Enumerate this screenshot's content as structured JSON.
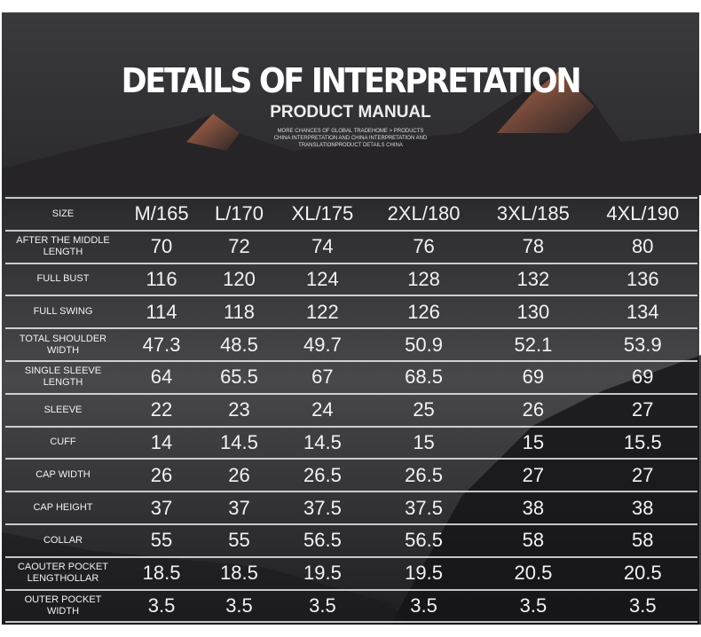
{
  "header": {
    "title": "DETAILS OF INTERPRETATION",
    "subtitle": "PRODUCT MANUAL",
    "small_text": [
      "MORE CHANCES OF GLOBAL TRADEHOME > PRODUCTS",
      "CHINA INTERPRETATION AND CHINA INTERPRETATION AND",
      "TRANSLATIONPRODUCT DETAILS CHINA"
    ]
  },
  "table": {
    "columns": [
      "SIZE",
      "M/165",
      "L/170",
      "XL/175",
      "2XL/180",
      "3XL/185",
      "4XL/190"
    ],
    "rows": [
      [
        "AFTER THE MIDDLE LENGTH",
        70,
        72,
        74,
        76,
        78,
        80
      ],
      [
        "FULL BUST",
        116,
        120,
        124,
        128,
        132,
        136
      ],
      [
        "FULL SWING",
        114,
        118,
        122,
        126,
        130,
        134
      ],
      [
        "TOTAL SHOULDER WIDTH",
        47.3,
        48.5,
        49.7,
        50.9,
        52.1,
        53.9
      ],
      [
        "SINGLE SLEEVE LENGTH",
        64,
        65.5,
        67,
        68.5,
        69,
        69
      ],
      [
        "SLEEVE",
        22,
        23,
        24,
        25,
        26,
        27
      ],
      [
        "CUFF",
        14,
        14.5,
        14.5,
        15,
        15,
        15.5
      ],
      [
        "CAP WIDTH",
        26,
        26,
        26.5,
        26.5,
        27,
        27
      ],
      [
        "CAP HEIGHT",
        37,
        37,
        37.5,
        37.5,
        38,
        38
      ],
      [
        "COLLAR",
        55,
        55,
        56.5,
        56.5,
        58,
        58
      ],
      [
        "CAOUTER POCKET LENGTHOLLAR",
        18.5,
        18.5,
        19.5,
        19.5,
        20.5,
        20.5
      ],
      [
        "OUTER POCKET WIDTH",
        3.5,
        3.5,
        3.5,
        3.5,
        3.5,
        3.5
      ]
    ]
  }
}
